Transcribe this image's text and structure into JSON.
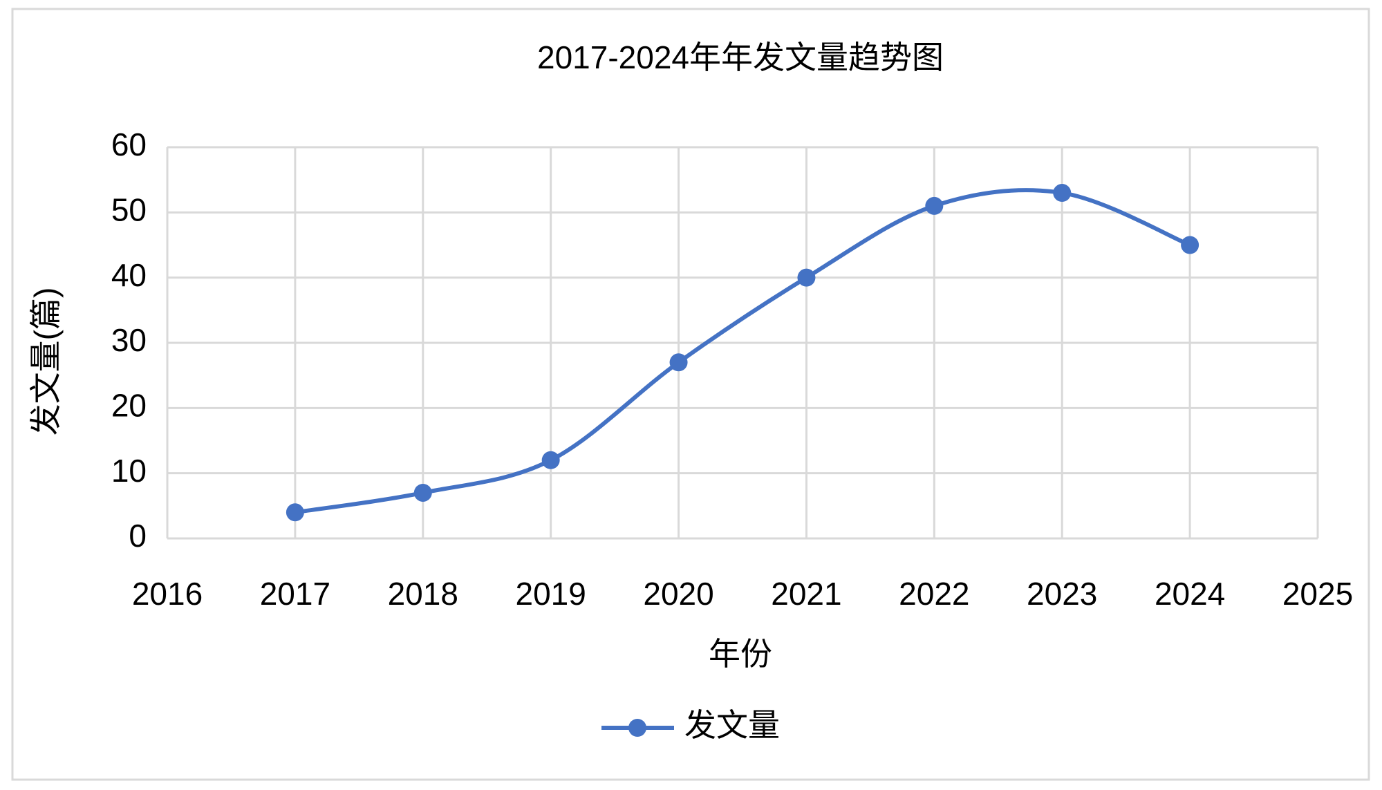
{
  "chart_data": {
    "type": "line",
    "title": "2017-2024年年发文量趋势图",
    "x_label": "年份",
    "y_label": "发文量(篇)",
    "x": [
      2017,
      2018,
      2019,
      2020,
      2021,
      2022,
      2023,
      2024
    ],
    "series": [
      {
        "name": "发文量",
        "color": "#4472c4",
        "values": [
          4,
          7,
          12,
          27,
          40,
          51,
          53,
          45
        ]
      }
    ],
    "xlim": [
      2016,
      2025
    ],
    "xticks": [
      2016,
      2017,
      2018,
      2019,
      2020,
      2021,
      2022,
      2023,
      2024,
      2025
    ],
    "ylim": [
      0,
      60
    ],
    "yticks": [
      0,
      10,
      20,
      30,
      40,
      50,
      60
    ],
    "grid": true,
    "smooth": true,
    "legend": "bottom"
  }
}
